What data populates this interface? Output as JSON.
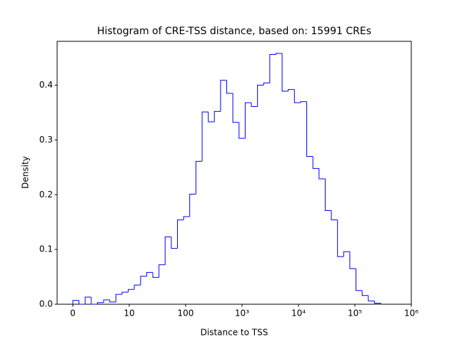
{
  "chart_data": {
    "type": "histogram",
    "title": "Histogram of CRE-TSS distance, based on: 15991 CREs",
    "x_label": "Distance to TSS",
    "y_label": "Density",
    "color": "#0000ff",
    "xscale": "symlog",
    "linthresh": 10,
    "bins": [
      0,
      1.09,
      2.18,
      3.27,
      4.36,
      5.46,
      6.55,
      7.64,
      8.73,
      9.82,
      12.3,
      15.9,
      20.4,
      26.2,
      33.7,
      43.3,
      55.7,
      71.6,
      92.1,
      118,
      152,
      196,
      252,
      323,
      416,
      535,
      687,
      884,
      1136,
      1461,
      1878,
      2415,
      3104,
      3990,
      5130,
      6595,
      8479,
      10900,
      14013,
      18015,
      23161,
      29775,
      38279,
      49211,
      63265,
      81335,
      104560,
      134425,
      172818,
      222174,
      285630
    ],
    "values": [
      0.007,
      0,
      0.013,
      0,
      0.003,
      0.008,
      0.004,
      0.018,
      0.022,
      0.027,
      0.035,
      0.051,
      0.058,
      0.049,
      0.072,
      0.123,
      0.102,
      0.154,
      0.16,
      0.201,
      0.261,
      0.351,
      0.333,
      0.352,
      0.409,
      0.385,
      0.332,
      0.303,
      0.368,
      0.361,
      0.4,
      0.404,
      0.456,
      0.458,
      0.389,
      0.392,
      0.368,
      0.37,
      0.27,
      0.248,
      0.229,
      0.171,
      0.154,
      0.087,
      0.096,
      0.065,
      0.025,
      0.016,
      0.006,
      0.002
    ],
    "xlim": [
      -2.78,
      1000000
    ],
    "xticks": [
      0,
      10,
      100,
      {
        "value": 1000,
        "label": "10³"
      },
      {
        "value": 10000,
        "label": "10⁴"
      },
      {
        "value": 100000,
        "label": "10⁵"
      },
      {
        "value": 1000000,
        "label": "10⁶"
      }
    ],
    "ylim": [
      0,
      0.48
    ],
    "yticks": [
      {
        "value": 0,
        "label": "0.0"
      },
      0.1,
      0.2,
      0.3,
      0.4
    ]
  }
}
